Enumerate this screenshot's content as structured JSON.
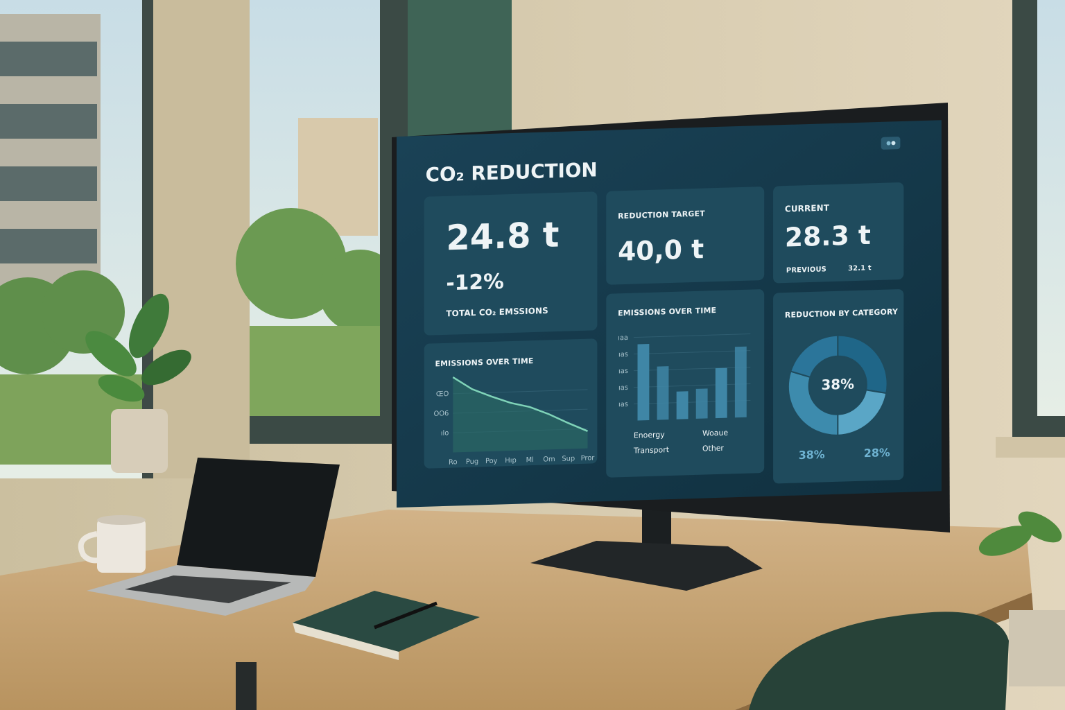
{
  "dashboard": {
    "title": "CO₂ REDUCTION",
    "total": {
      "value": "24.8 t",
      "change": "-12%",
      "label": "TOTAL CO₂ EMSSIONS"
    },
    "target": {
      "label": "REDUCTION TARGET",
      "value": "40,0 t"
    },
    "current": {
      "label": "CURRENT",
      "value": "28.3 t",
      "previous_label": "PREVIOUS",
      "previous_value": "32.1 t"
    },
    "line_chart": {
      "type": "line",
      "title": "EMISSIONS OVER TIME",
      "categories": [
        "Ro",
        "Pug",
        "Poy",
        "Hıp",
        "Ml",
        "Om",
        "Sup",
        "Pror"
      ],
      "values": [
        96,
        80,
        70,
        61,
        55,
        45,
        33,
        22
      ],
      "color": "#7fd3b8",
      "ylim": [
        0,
        100
      ],
      "yticks": [
        {
          "value": 25,
          "label": "ılo"
        },
        {
          "value": 50,
          "label": "OO6"
        },
        {
          "value": 75,
          "label": "ŒO"
        }
      ]
    },
    "bar_chart": {
      "type": "bar",
      "title": "EMISSIONS OVER TIME",
      "values": [
        110,
        77,
        40,
        43,
        72,
        102
      ],
      "color": "#3f86a6",
      "ylim": [
        0,
        120
      ],
      "yticks": [
        {
          "value": 24,
          "label": "ıas"
        },
        {
          "value": 48,
          "label": "ıas"
        },
        {
          "value": 72,
          "label": "ıas"
        },
        {
          "value": 96,
          "label": "ıas"
        },
        {
          "value": 120,
          "label": "ıaa"
        }
      ],
      "legend": [
        "Enoergy",
        "Woaue",
        "Transport",
        "Other"
      ]
    },
    "donut_chart": {
      "type": "pie",
      "title": "REDUCTION BY CATEGORY",
      "values": [
        28,
        22,
        30,
        20
      ],
      "colors": [
        "#1f6688",
        "#5aa6c6",
        "#3d8bad",
        "#2b759a"
      ],
      "center_label": "38%",
      "labels": [
        "38%",
        "28%"
      ]
    }
  }
}
